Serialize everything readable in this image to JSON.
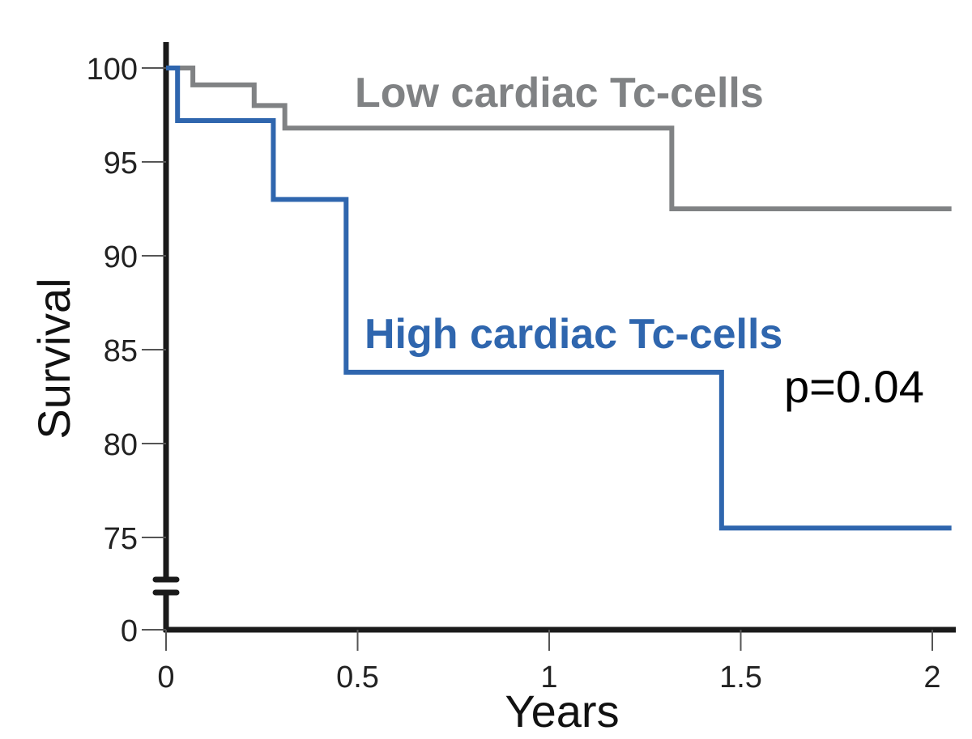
{
  "chart_data": {
    "type": "line",
    "step": true,
    "xlabel": "Years",
    "ylabel": "Survival",
    "xlim": [
      0,
      2.05
    ],
    "x_ticks": [
      0,
      0.5,
      1,
      1.5,
      2
    ],
    "x_tick_labels": [
      "0",
      "0.5",
      "1",
      "1.5",
      "2"
    ],
    "y_ticks": [
      0,
      75,
      80,
      85,
      90,
      95,
      100
    ],
    "y_tick_labels": [
      "0",
      "75",
      "80",
      "85",
      "90",
      "95",
      "100"
    ],
    "y_axis_break": [
      0,
      75
    ],
    "series": [
      {
        "name": "Low cardiac Tc-cells",
        "color": "#808284",
        "x": [
          0,
          0.07,
          0.23,
          0.31,
          1.32,
          2.05
        ],
        "y": [
          100,
          99.1,
          98.0,
          96.8,
          92.5,
          92.5
        ]
      },
      {
        "name": "High cardiac Tc-cells",
        "color": "#2f66ae",
        "x": [
          0,
          0.03,
          0.28,
          0.47,
          1.45,
          2.05
        ],
        "y": [
          100,
          97.2,
          93.0,
          83.8,
          75.5,
          75.5
        ]
      }
    ],
    "annotations": [
      {
        "text": "p=0.04",
        "color": "#000000"
      }
    ]
  }
}
